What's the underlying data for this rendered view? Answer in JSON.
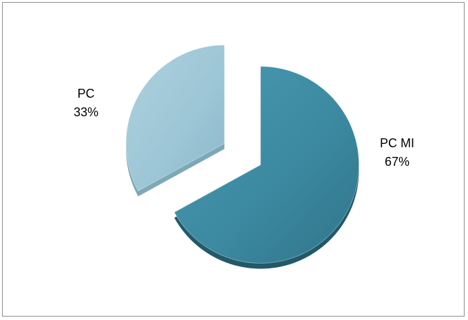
{
  "chart_data": {
    "type": "pie",
    "title": "",
    "slices": [
      {
        "label": "PC MI",
        "value": 67,
        "value_label": "67%",
        "color": "#3f8fa6"
      },
      {
        "label": "PC",
        "value": 33,
        "value_label": "33%",
        "color": "#9ec7d6"
      }
    ],
    "exploded": true,
    "three_d": true,
    "legend": "none"
  }
}
